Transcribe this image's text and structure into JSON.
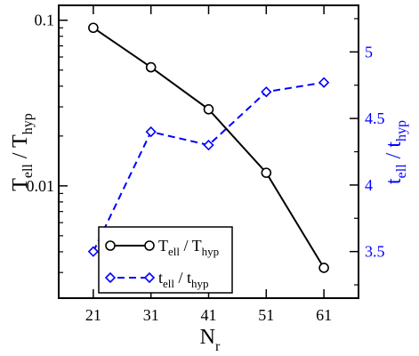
{
  "chart_data": {
    "type": "line",
    "x": [
      21,
      31,
      41,
      51,
      61
    ],
    "xticks": [
      "21",
      "31",
      "41",
      "51",
      "61"
    ],
    "xlim": [
      15,
      67
    ],
    "xlabel": {
      "main": "N",
      "sub": "r"
    },
    "ylabel_left": {
      "p1": "T",
      "s1": "ell",
      "p2": " / T",
      "s2": "hyp"
    },
    "ylabel_right": {
      "p1": "t",
      "s1": "ell",
      "p2": " / t",
      "s2": "hyp"
    },
    "y_left": {
      "scale": "log",
      "lim": [
        0.0021,
        0.123
      ],
      "ticks": [
        {
          "value": 0.1,
          "label": "0.1"
        },
        {
          "value": 0.01,
          "label": "0.01"
        }
      ],
      "minor_ticks": [
        0.003,
        0.004,
        0.005,
        0.006,
        0.007,
        0.008,
        0.009,
        0.02,
        0.03,
        0.04,
        0.05,
        0.06,
        0.07,
        0.08,
        0.09
      ]
    },
    "y_right": {
      "scale": "linear",
      "lim": [
        3.15,
        5.35
      ],
      "ticks": [
        {
          "value": 3.5,
          "label": "3.5"
        },
        {
          "value": 4.0,
          "label": "4"
        },
        {
          "value": 4.5,
          "label": "4.5"
        },
        {
          "value": 5.0,
          "label": "5"
        }
      ],
      "minor_ticks": [
        3.25,
        3.75,
        4.25,
        4.75,
        5.25
      ]
    },
    "series": [
      {
        "name": {
          "p1": "T",
          "s1": "ell",
          "p2": " / T",
          "s2": "hyp"
        },
        "axis": "left",
        "values": [
          0.09,
          0.052,
          0.029,
          0.012,
          0.0032
        ],
        "color": "#000000",
        "marker": "circle",
        "line": "solid"
      },
      {
        "name": {
          "p1": "t",
          "s1": "ell",
          "p2": " / t",
          "s2": "hyp"
        },
        "axis": "right",
        "values": [
          3.5,
          4.4,
          4.3,
          4.7,
          4.77
        ],
        "color": "#0000ff",
        "marker": "diamond",
        "line": "dashed"
      }
    ],
    "legend": {
      "placement": "lower-left"
    },
    "colors": {
      "axis": "#000000",
      "right_axis_text": "#0000ff"
    }
  }
}
